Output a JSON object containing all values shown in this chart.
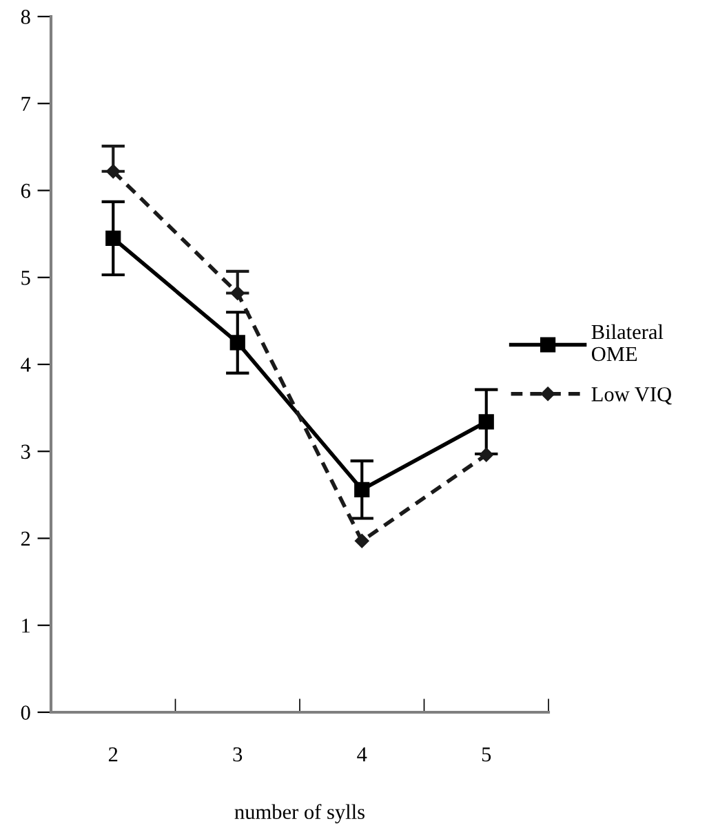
{
  "chart_data": {
    "type": "line",
    "xlabel": "number of sylls",
    "categories": [
      "2",
      "3",
      "4",
      "5"
    ],
    "series": [
      {
        "name": "Bilateral OME",
        "color": "#000000",
        "marker": "square",
        "line_style": "solid",
        "values": [
          5.45,
          4.25,
          2.56,
          3.34
        ],
        "errors": [
          0.42,
          0.35,
          0.33,
          0.37
        ]
      },
      {
        "name": "Low VIQ",
        "color": "#1a1a1a",
        "marker": "diamond",
        "line_style": "dashed",
        "values": [
          6.22,
          4.82,
          1.97,
          2.96
        ],
        "errors": [
          [
            6.22,
            6.51
          ],
          [
            4.82,
            5.07
          ],
          null,
          null
        ]
      }
    ],
    "ylim": [
      0,
      8
    ],
    "yticks": [
      0,
      1,
      2,
      3,
      4,
      5,
      6,
      7,
      8
    ],
    "grid": false,
    "legend": "right"
  }
}
